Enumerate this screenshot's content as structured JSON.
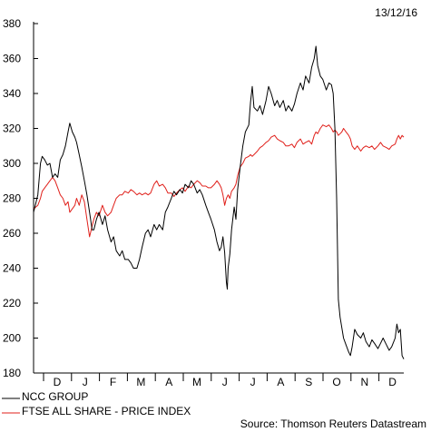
{
  "date_label": "13/12/16",
  "source_label": "Source: Thomson Reuters Datastream",
  "colors": {
    "ncc": "#000000",
    "ftse": "#e0201b",
    "axis": "#000000"
  },
  "chart_data": {
    "type": "line",
    "title": "",
    "xlabel": "",
    "ylabel": "",
    "ylim": [
      180,
      380
    ],
    "yticks": [
      180,
      200,
      220,
      240,
      260,
      280,
      300,
      320,
      340,
      360,
      380
    ],
    "month_labels": [
      "D",
      "J",
      "F",
      "M",
      "A",
      "M",
      "J",
      "J",
      "A",
      "S",
      "O",
      "N",
      "D"
    ],
    "grid": false,
    "legend_position": "bottom-left",
    "series": [
      {
        "name": "NCC GROUP",
        "color": "#000000",
        "values": [
          [
            0.0,
            272
          ],
          [
            0.5,
            282
          ],
          [
            0.8,
            300
          ],
          [
            1.0,
            304
          ],
          [
            1.3,
            302
          ],
          [
            1.6,
            299
          ],
          [
            1.9,
            300
          ],
          [
            2.2,
            292
          ],
          [
            2.5,
            294
          ],
          [
            2.8,
            292
          ],
          [
            3.1,
            302
          ],
          [
            3.4,
            305
          ],
          [
            3.7,
            310
          ],
          [
            4.0,
            318
          ],
          [
            4.2,
            323
          ],
          [
            4.5,
            318
          ],
          [
            4.8,
            315
          ],
          [
            5.0,
            312
          ],
          [
            5.3,
            305
          ],
          [
            5.6,
            298
          ],
          [
            5.9,
            290
          ],
          [
            6.2,
            282
          ],
          [
            6.5,
            272
          ],
          [
            6.8,
            262
          ],
          [
            7.0,
            262
          ],
          [
            7.3,
            268
          ],
          [
            7.6,
            272
          ],
          [
            8.0,
            265
          ],
          [
            8.3,
            270
          ],
          [
            8.6,
            262
          ],
          [
            9.0,
            255
          ],
          [
            9.3,
            258
          ],
          [
            9.6,
            250
          ],
          [
            10.0,
            247
          ],
          [
            10.3,
            250
          ],
          [
            10.6,
            245
          ],
          [
            11.0,
            245
          ],
          [
            11.3,
            243
          ],
          [
            11.6,
            240
          ],
          [
            12.0,
            240
          ],
          [
            12.3,
            245
          ],
          [
            12.6,
            252
          ],
          [
            13.0,
            260
          ],
          [
            13.3,
            262
          ],
          [
            13.6,
            258
          ],
          [
            14.0,
            265
          ],
          [
            14.3,
            262
          ],
          [
            14.6,
            265
          ],
          [
            15.0,
            262
          ],
          [
            15.3,
            272
          ],
          [
            15.6,
            275
          ],
          [
            16.0,
            280
          ],
          [
            16.3,
            284
          ],
          [
            16.6,
            282
          ],
          [
            17.0,
            285
          ],
          [
            17.3,
            283
          ],
          [
            17.6,
            288
          ],
          [
            18.0,
            286
          ],
          [
            18.3,
            290
          ],
          [
            18.6,
            288
          ],
          [
            19.0,
            283
          ],
          [
            19.3,
            285
          ],
          [
            19.6,
            282
          ],
          [
            20.0,
            276
          ],
          [
            20.3,
            272
          ],
          [
            20.6,
            268
          ],
          [
            21.0,
            262
          ],
          [
            21.3,
            255
          ],
          [
            21.6,
            250
          ],
          [
            21.8,
            252
          ],
          [
            22.0,
            258
          ],
          [
            22.2,
            249
          ],
          [
            22.4,
            232
          ],
          [
            22.5,
            228
          ],
          [
            22.6,
            240
          ],
          [
            22.8,
            248
          ],
          [
            23.0,
            262
          ],
          [
            23.3,
            275
          ],
          [
            23.5,
            268
          ],
          [
            23.7,
            285
          ],
          [
            24.0,
            298
          ],
          [
            24.3,
            310
          ],
          [
            24.6,
            318
          ],
          [
            25.0,
            322
          ],
          [
            25.2,
            335
          ],
          [
            25.4,
            344
          ],
          [
            25.6,
            332
          ],
          [
            26.0,
            330
          ],
          [
            26.3,
            333
          ],
          [
            26.6,
            328
          ],
          [
            27.0,
            336
          ],
          [
            27.3,
            344
          ],
          [
            27.6,
            340
          ],
          [
            28.0,
            333
          ],
          [
            28.3,
            336
          ],
          [
            28.6,
            332
          ],
          [
            29.0,
            336
          ],
          [
            29.3,
            330
          ],
          [
            29.6,
            333
          ],
          [
            30.0,
            330
          ],
          [
            30.3,
            334
          ],
          [
            30.6,
            340
          ],
          [
            31.0,
            346
          ],
          [
            31.3,
            342
          ],
          [
            31.6,
            350
          ],
          [
            32.0,
            346
          ],
          [
            32.3,
            355
          ],
          [
            32.6,
            360
          ],
          [
            32.8,
            367
          ],
          [
            33.0,
            356
          ],
          [
            33.3,
            350
          ],
          [
            33.6,
            348
          ],
          [
            34.0,
            342
          ],
          [
            34.3,
            346
          ],
          [
            34.6,
            345
          ],
          [
            34.8,
            340
          ],
          [
            35.0,
            320
          ],
          [
            35.2,
            280
          ],
          [
            35.4,
            222
          ],
          [
            35.6,
            212
          ],
          [
            35.8,
            206
          ],
          [
            36.0,
            200
          ],
          [
            36.3,
            196
          ],
          [
            36.6,
            192
          ],
          [
            36.8,
            190
          ],
          [
            37.0,
            195
          ],
          [
            37.3,
            205
          ],
          [
            37.6,
            202
          ],
          [
            38.0,
            200
          ],
          [
            38.3,
            203
          ],
          [
            38.6,
            198
          ],
          [
            39.0,
            195
          ],
          [
            39.3,
            199
          ],
          [
            39.6,
            197
          ],
          [
            40.0,
            194
          ],
          [
            40.3,
            197
          ],
          [
            40.6,
            200
          ],
          [
            41.0,
            196
          ],
          [
            41.3,
            193
          ],
          [
            41.6,
            195
          ],
          [
            42.0,
            200
          ],
          [
            42.2,
            208
          ],
          [
            42.4,
            203
          ],
          [
            42.6,
            205
          ],
          [
            42.8,
            190
          ],
          [
            43.0,
            188
          ]
        ]
      },
      {
        "name": "FTSE ALL SHARE - PRICE INDEX",
        "color": "#e0201b",
        "values": [
          [
            0.0,
            274
          ],
          [
            0.5,
            276
          ],
          [
            0.8,
            280
          ],
          [
            1.0,
            284
          ],
          [
            1.3,
            286
          ],
          [
            1.6,
            288
          ],
          [
            1.9,
            290
          ],
          [
            2.2,
            292
          ],
          [
            2.5,
            290
          ],
          [
            2.8,
            286
          ],
          [
            3.1,
            282
          ],
          [
            3.4,
            280
          ],
          [
            3.7,
            276
          ],
          [
            4.0,
            278
          ],
          [
            4.2,
            272
          ],
          [
            4.5,
            274
          ],
          [
            4.8,
            276
          ],
          [
            5.0,
            280
          ],
          [
            5.3,
            276
          ],
          [
            5.6,
            282
          ],
          [
            5.9,
            278
          ],
          [
            6.2,
            268
          ],
          [
            6.5,
            258
          ],
          [
            6.8,
            264
          ],
          [
            7.0,
            268
          ],
          [
            7.3,
            272
          ],
          [
            7.6,
            270
          ],
          [
            8.0,
            276
          ],
          [
            8.3,
            272
          ],
          [
            8.6,
            270
          ],
          [
            9.0,
            272
          ],
          [
            9.3,
            276
          ],
          [
            9.6,
            280
          ],
          [
            10.0,
            282
          ],
          [
            10.3,
            282
          ],
          [
            10.6,
            284
          ],
          [
            11.0,
            283
          ],
          [
            11.3,
            285
          ],
          [
            11.6,
            284
          ],
          [
            12.0,
            282
          ],
          [
            12.3,
            283
          ],
          [
            12.6,
            282
          ],
          [
            13.0,
            283
          ],
          [
            13.3,
            282
          ],
          [
            13.6,
            283
          ],
          [
            14.0,
            288
          ],
          [
            14.3,
            290
          ],
          [
            14.6,
            287
          ],
          [
            15.0,
            288
          ],
          [
            15.3,
            286
          ],
          [
            15.6,
            283
          ],
          [
            16.0,
            283
          ],
          [
            16.3,
            281
          ],
          [
            16.6,
            283
          ],
          [
            17.0,
            285
          ],
          [
            17.3,
            286
          ],
          [
            17.6,
            284
          ],
          [
            18.0,
            287
          ],
          [
            18.3,
            286
          ],
          [
            18.6,
            288
          ],
          [
            19.0,
            290
          ],
          [
            19.3,
            289
          ],
          [
            19.6,
            287
          ],
          [
            20.0,
            287
          ],
          [
            20.3,
            286
          ],
          [
            20.6,
            286
          ],
          [
            21.0,
            288
          ],
          [
            21.3,
            290
          ],
          [
            21.6,
            288
          ],
          [
            21.8,
            286
          ],
          [
            22.0,
            282
          ],
          [
            22.2,
            276
          ],
          [
            22.4,
            280
          ],
          [
            22.6,
            282
          ],
          [
            22.8,
            280
          ],
          [
            23.0,
            284
          ],
          [
            23.3,
            286
          ],
          [
            23.5,
            288
          ],
          [
            23.7,
            293
          ],
          [
            24.0,
            298
          ],
          [
            24.3,
            300
          ],
          [
            24.6,
            303
          ],
          [
            25.0,
            304
          ],
          [
            25.2,
            305
          ],
          [
            25.4,
            304
          ],
          [
            25.6,
            305
          ],
          [
            26.0,
            307
          ],
          [
            26.3,
            309
          ],
          [
            26.6,
            310
          ],
          [
            27.0,
            312
          ],
          [
            27.3,
            313
          ],
          [
            27.6,
            315
          ],
          [
            28.0,
            316
          ],
          [
            28.3,
            314
          ],
          [
            28.6,
            313
          ],
          [
            29.0,
            312
          ],
          [
            29.3,
            310
          ],
          [
            29.6,
            310
          ],
          [
            30.0,
            311
          ],
          [
            30.3,
            309
          ],
          [
            30.6,
            312
          ],
          [
            31.0,
            314
          ],
          [
            31.3,
            311
          ],
          [
            31.6,
            312
          ],
          [
            32.0,
            313
          ],
          [
            32.3,
            311
          ],
          [
            32.6,
            316
          ],
          [
            32.8,
            318
          ],
          [
            33.0,
            317
          ],
          [
            33.3,
            320
          ],
          [
            33.6,
            322
          ],
          [
            34.0,
            321
          ],
          [
            34.3,
            322
          ],
          [
            34.6,
            320
          ],
          [
            34.8,
            318
          ],
          [
            35.0,
            319
          ],
          [
            35.2,
            318
          ],
          [
            35.4,
            316
          ],
          [
            35.6,
            317
          ],
          [
            35.8,
            318
          ],
          [
            36.0,
            320
          ],
          [
            36.3,
            318
          ],
          [
            36.6,
            316
          ],
          [
            36.8,
            314
          ],
          [
            37.0,
            310
          ],
          [
            37.3,
            308
          ],
          [
            37.6,
            310
          ],
          [
            38.0,
            307
          ],
          [
            38.3,
            309
          ],
          [
            38.6,
            310
          ],
          [
            39.0,
            309
          ],
          [
            39.3,
            310
          ],
          [
            39.6,
            308
          ],
          [
            40.0,
            310
          ],
          [
            40.3,
            312
          ],
          [
            40.6,
            310
          ],
          [
            41.0,
            309
          ],
          [
            41.3,
            308
          ],
          [
            41.6,
            310
          ],
          [
            42.0,
            311
          ],
          [
            42.2,
            314
          ],
          [
            42.4,
            316
          ],
          [
            42.6,
            314
          ],
          [
            42.8,
            316
          ],
          [
            43.0,
            315
          ]
        ]
      }
    ]
  }
}
